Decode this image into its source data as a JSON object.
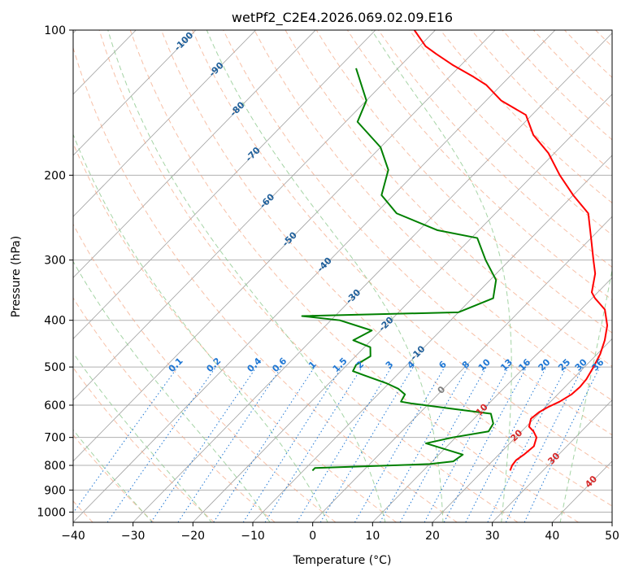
{
  "chart_data": {
    "type": "line",
    "title": "wetPf2_C2E4.2026.069.02.09.E16",
    "xlabel": "Temperature (°C)",
    "ylabel": "Pressure (hPa)",
    "xlim": [
      -40,
      50
    ],
    "ylim": [
      1050,
      100
    ],
    "y_scale": "log",
    "x_ticks": [
      "−40",
      "−30",
      "−20",
      "−10",
      "0",
      "10",
      "20",
      "30",
      "40",
      "50"
    ],
    "x_tick_values": [
      -40,
      -30,
      -20,
      -10,
      0,
      10,
      20,
      30,
      40,
      50
    ],
    "y_ticks": [
      "100",
      "200",
      "300",
      "400",
      "500",
      "600",
      "700",
      "800",
      "900",
      "1000"
    ],
    "y_tick_values": [
      100,
      200,
      300,
      400,
      500,
      600,
      700,
      800,
      900,
      1000
    ],
    "grid": true,
    "colors": {
      "temperature": "#ff0000",
      "dewpoint": "#008000",
      "isotherm": "#a0a0a0",
      "dry_adiabat": "#f4a582",
      "moist_adiabat": "#8fc98f",
      "mixing_ratio": "#1f77d4",
      "moist_label": "#1f5f9a",
      "dry_label": "#d62728",
      "zero_label": "#808080"
    },
    "series": [
      {
        "key": "temperature",
        "x": [
          24.5,
          24.0,
          23.8,
          24.2,
          24.5,
          23.5,
          22.0,
          20.5,
          19.5,
          19.8,
          20.5,
          21.5,
          22.3,
          22.5,
          22.3,
          21.5,
          20.5,
          19.0,
          17.0,
          14.0,
          10.5,
          9.0,
          6.5,
          4.0,
          0.0,
          -4.5,
          -10.0,
          -15.5,
          -21.0,
          -26.5,
          -31.0,
          -37.5,
          -42.5,
          -46.0,
          -51.5,
          -56.0,
          -59.0,
          -63.5
        ],
        "y": [
          820,
          800,
          780,
          760,
          730,
          700,
          680,
          665,
          640,
          620,
          605,
          590,
          570,
          550,
          530,
          500,
          470,
          440,
          410,
          380,
          360,
          350,
          320,
          300,
          270,
          240,
          220,
          200,
          180,
          165,
          150,
          140,
          130,
          125,
          118,
          112,
          108,
          100
        ]
      },
      {
        "key": "dewpoint",
        "x": [
          -8.5,
          -8.5,
          10.0,
          13.5,
          14.0,
          6.0,
          9.5,
          14.5,
          14.0,
          12.0,
          4.5,
          -3.0,
          -5.0,
          -5.5,
          -7.5,
          -10.5,
          -15.5,
          -18.0,
          -18.5,
          -17.5,
          -19.0,
          -23.0,
          -21.5,
          -28.5,
          -35.5,
          -10.0,
          -6.5,
          -9.0,
          -14.0,
          -19.0,
          -27.0,
          -36.5,
          -42.0,
          -45.0,
          -50.0,
          -58.0,
          -60.0,
          -67.0
        ],
        "y": [
          820,
          810,
          795,
          785,
          760,
          720,
          700,
          680,
          655,
          625,
          610,
          595,
          590,
          570,
          555,
          540,
          520,
          510,
          495,
          475,
          455,
          440,
          420,
          400,
          392,
          385,
          360,
          330,
          300,
          270,
          260,
          240,
          220,
          195,
          175,
          155,
          140,
          120
        ]
      }
    ],
    "isotherm_values": [
      -190,
      -180,
      -170,
      -160,
      -150,
      -140,
      -130,
      -120,
      -110,
      -100,
      -90,
      -80,
      -70,
      -60,
      -50,
      -40,
      -30,
      -20,
      -10,
      0,
      10,
      20,
      30,
      40,
      50
    ],
    "dry_adiabat_thetas_C": [
      -40,
      -30,
      -20,
      -10,
      0,
      10,
      20,
      30,
      40,
      50,
      60,
      70,
      80,
      90,
      100,
      110,
      120,
      130,
      140,
      150,
      160,
      170,
      180,
      190,
      200
    ],
    "moist_adiabat_labels": [
      "-100",
      "-90",
      "-80",
      "-70",
      "-60",
      "-50",
      "-40",
      "-30",
      "-20",
      "-10",
      "0"
    ],
    "moist_adiabat_label_positions": [
      {
        "t": -100,
        "p": 105
      },
      {
        "t": -90,
        "p": 120
      },
      {
        "t": -80,
        "p": 145
      },
      {
        "t": -70,
        "p": 180
      },
      {
        "t": -60,
        "p": 225
      },
      {
        "t": -50,
        "p": 270
      },
      {
        "t": -40,
        "p": 305
      },
      {
        "t": -30,
        "p": 355
      },
      {
        "t": -20,
        "p": 405
      },
      {
        "t": -10,
        "p": 465
      },
      {
        "t": 0,
        "p": 555
      }
    ],
    "dry_adiabat_labels": [
      "10",
      "20",
      "30",
      "40"
    ],
    "dry_adiabat_label_positions": [
      {
        "t": 10,
        "p": 610
      },
      {
        "t": 20,
        "p": 690
      },
      {
        "t": 30,
        "p": 770
      },
      {
        "t": 40,
        "p": 860
      }
    ],
    "mixing_ratio_labels": [
      "0.1",
      "0.2",
      "0.4",
      "0.6",
      "1",
      "1.5",
      "2",
      "3",
      "4",
      "6",
      "8",
      "10",
      "13",
      "16",
      "20",
      "25",
      "30",
      "36"
    ],
    "mixing_ratio_values": [
      0.1,
      0.2,
      0.4,
      0.6,
      1,
      1.5,
      2,
      3,
      4,
      6,
      8,
      10,
      13,
      16,
      20,
      25,
      30,
      36
    ]
  }
}
